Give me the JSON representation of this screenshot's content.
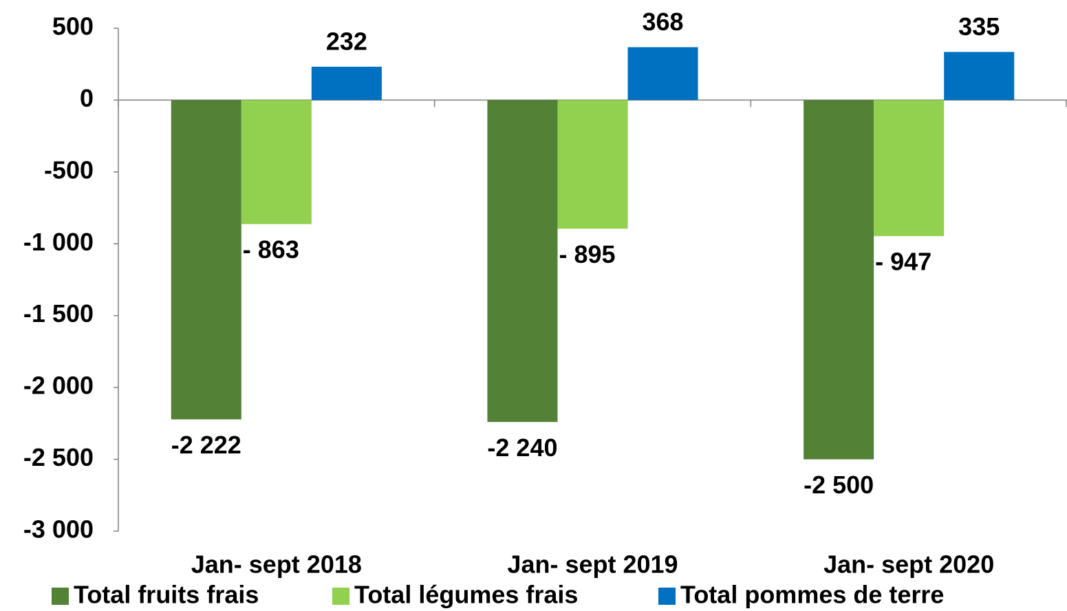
{
  "chart_data": {
    "type": "bar",
    "categories": [
      "Jan- sept 2018",
      "Jan- sept 2019",
      "Jan- sept 2020"
    ],
    "series": [
      {
        "name": "Total fruits frais",
        "color": "#538135",
        "values": [
          -2222,
          -2240,
          -2500
        ],
        "value_labels": [
          "-2 222",
          "-2 240",
          "-2 500"
        ]
      },
      {
        "name": "Total légumes frais",
        "color": "#92d050",
        "values": [
          -863,
          -895,
          -947
        ],
        "value_labels": [
          "- 863",
          "- 895",
          "- 947"
        ]
      },
      {
        "name": "Total pommes de terre",
        "color": "#0070c0",
        "values": [
          232,
          368,
          335
        ]
      }
    ],
    "ylim": [
      -3000,
      500
    ],
    "yticks": [
      {
        "value": -3000,
        "label": "-3 000"
      },
      {
        "value": -2500,
        "label": "-2 500"
      },
      {
        "value": -2000,
        "label": "-2 000"
      },
      {
        "value": -1500,
        "label": "-1 500"
      },
      {
        "value": -1000,
        "label": "-1 000"
      },
      {
        "value": -500,
        "label": "-500"
      },
      0,
      500
    ],
    "legend": "bottom"
  }
}
